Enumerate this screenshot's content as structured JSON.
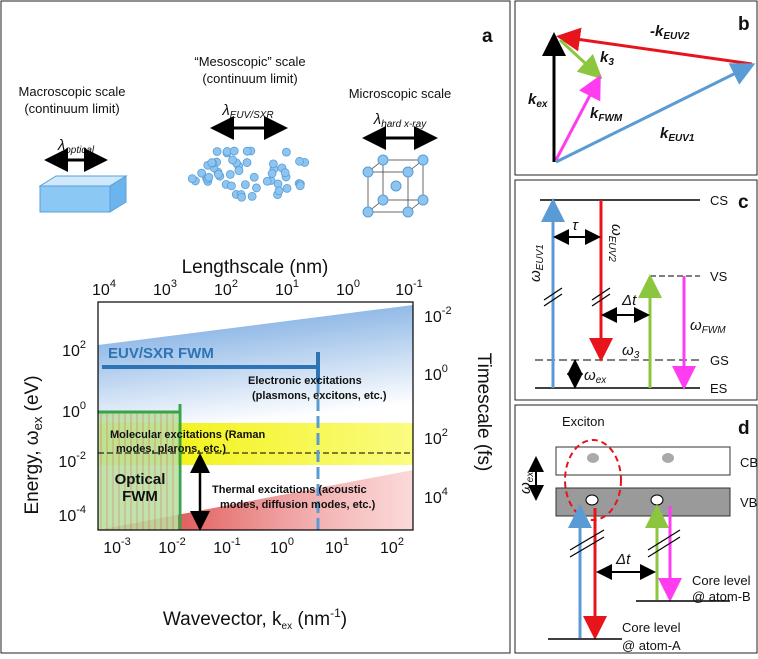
{
  "panel_a": {
    "label": "a",
    "scales": [
      {
        "title": [
          "Macroscopic scale",
          "(continuum limit)"
        ],
        "symbol": "λ",
        "sub": "optical"
      },
      {
        "title": [
          "“Mesoscopic” scale",
          "(continuum limit)"
        ],
        "symbol": "λ",
        "sub": "EUV/SXR"
      },
      {
        "title": [
          "Microscopic scale"
        ],
        "symbol": "λ",
        "sub": "hard x-ray"
      }
    ],
    "top_axis_title": "Lengthscale (nm)",
    "top_ticks": [
      {
        "base": "10",
        "exp": "4"
      },
      {
        "base": "10",
        "exp": "3"
      },
      {
        "base": "10",
        "exp": "2"
      },
      {
        "base": "10",
        "exp": "1"
      },
      {
        "base": "10",
        "exp": "0"
      },
      {
        "base": "10",
        "exp": "-1"
      }
    ],
    "bottom_axis_title": {
      "text": "Wavevector, k",
      "sub": "ex",
      "unit": " (nm",
      "unit_exp": "-1",
      "close": ")"
    },
    "bottom_ticks": [
      {
        "base": "10",
        "exp": "-3"
      },
      {
        "base": "10",
        "exp": "-2"
      },
      {
        "base": "10",
        "exp": "-1"
      },
      {
        "base": "10",
        "exp": "0"
      },
      {
        "base": "10",
        "exp": "1"
      },
      {
        "base": "10",
        "exp": "2"
      }
    ],
    "left_axis_title": {
      "text": "Energy, ω",
      "sub": "ex",
      "unit": " (eV)"
    },
    "left_ticks": [
      {
        "base": "10",
        "exp": "2"
      },
      {
        "base": "10",
        "exp": "0"
      },
      {
        "base": "10",
        "exp": "-2"
      },
      {
        "base": "10",
        "exp": "-4"
      }
    ],
    "right_axis_title": "Timescale (fs)",
    "right_ticks": [
      {
        "base": "10",
        "exp": "-2"
      },
      {
        "base": "10",
        "exp": "0"
      },
      {
        "base": "10",
        "exp": "2"
      },
      {
        "base": "10",
        "exp": "4"
      }
    ],
    "regions": {
      "euv": "EUV/SXR FWM",
      "electronic": [
        "Electronic excitations",
        "(plasmons, excitons, etc.)"
      ],
      "molecular": [
        "Molecular excitations (Raman",
        "modes, plarons, etc.)"
      ],
      "optical": [
        "Optical",
        "FWM"
      ],
      "thermal": [
        "Thermal excitations (acoustic",
        "modes, diffusion modes, etc.)"
      ]
    }
  },
  "panel_b": {
    "label": "b",
    "vectors": {
      "k_euv2": {
        "prefix": "-k",
        "sub": "EUV2"
      },
      "k_3": {
        "prefix": "k",
        "sub": "3"
      },
      "k_ex": {
        "prefix": "k",
        "sub": "ex"
      },
      "k_fwm": {
        "prefix": "k",
        "sub": "FWM"
      },
      "k_euv1": {
        "prefix": "k",
        "sub": "EUV1"
      }
    }
  },
  "panel_c": {
    "label": "c",
    "levels": [
      "CS",
      "VS",
      "GS",
      "ES"
    ],
    "omega_euv1": {
      "symbol": "ω",
      "sub": "EUV1"
    },
    "omega_euv2": {
      "symbol": "ω",
      "sub": "EUV2"
    },
    "tau": "τ",
    "delta_t": "Δt",
    "omega_3": {
      "symbol": "ω",
      "sub": "3"
    },
    "omega_fwm": {
      "symbol": "ω",
      "sub": "FWM"
    },
    "omega_ex": {
      "symbol": "ω",
      "sub": "ex"
    }
  },
  "panel_d": {
    "label": "d",
    "exciton": "Exciton",
    "bands": [
      "CB",
      "VB"
    ],
    "omega_ex": {
      "symbol": "ω",
      "sub": "ex"
    },
    "delta_t": "Δt",
    "core_b": [
      "Core level",
      "@ atom-B"
    ],
    "core_a": [
      "Core level",
      "@ atom-A"
    ]
  }
}
